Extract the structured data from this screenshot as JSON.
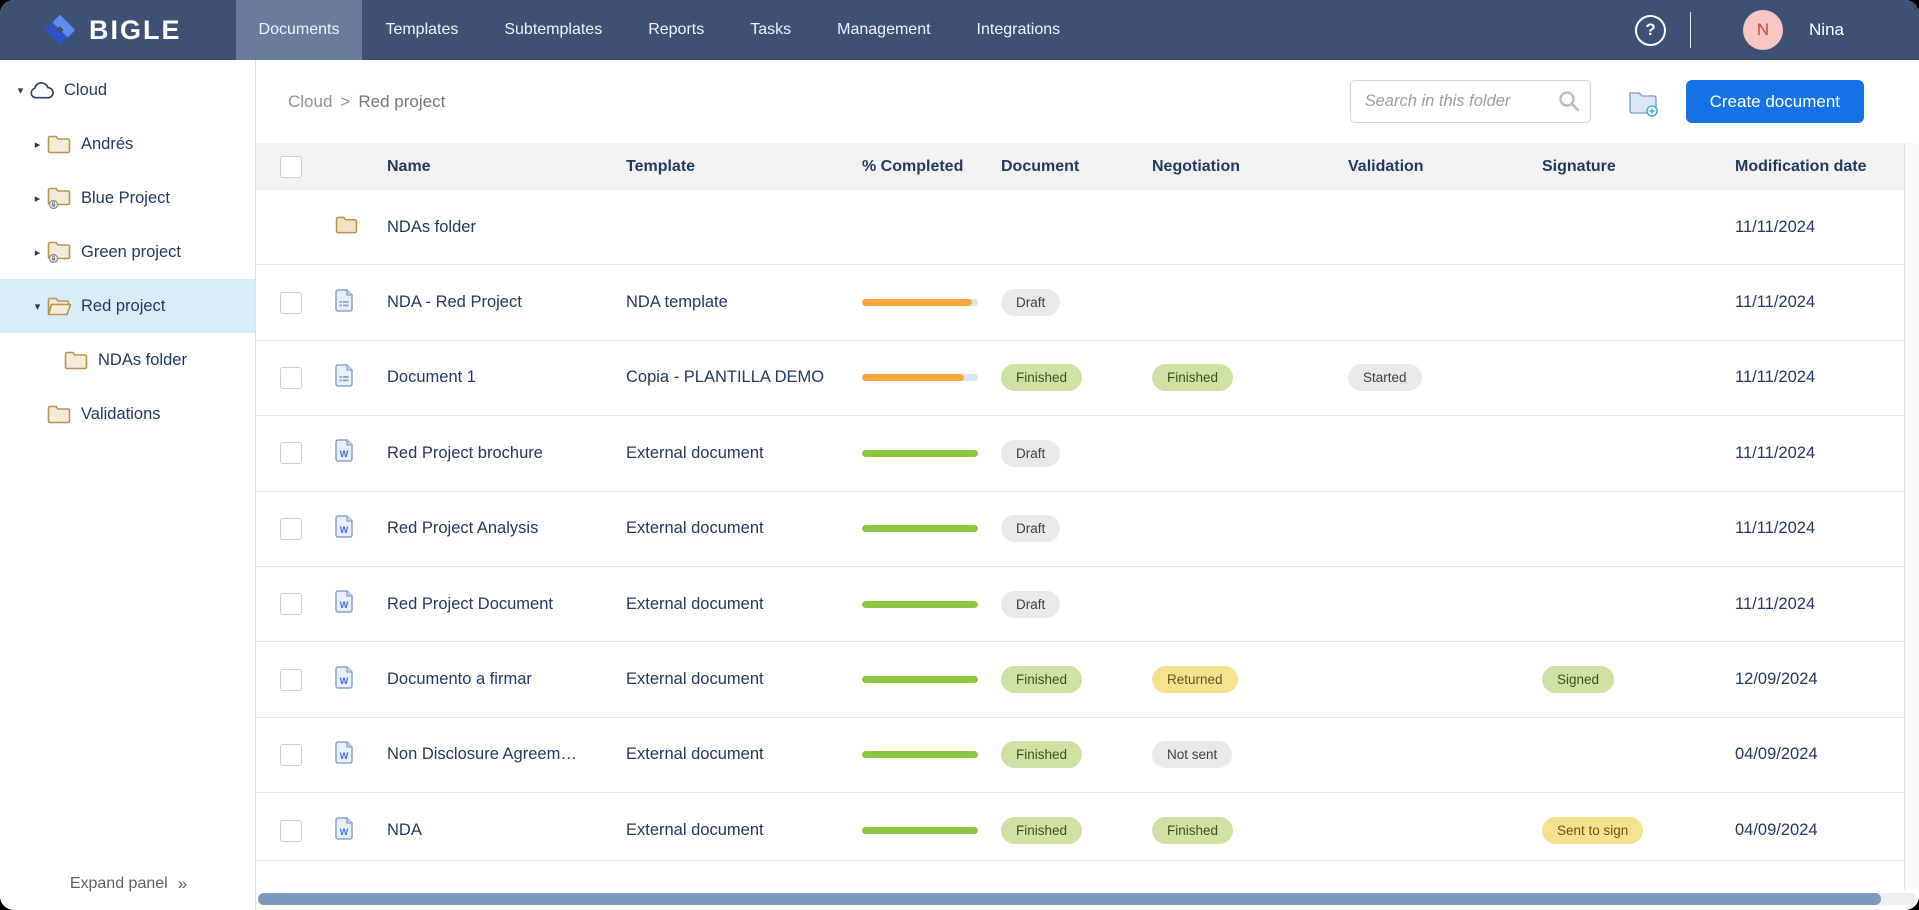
{
  "brand": {
    "name": "BIGLE",
    "logo_icon": "diamond-logo-icon"
  },
  "nav": {
    "tabs": [
      {
        "label": "Documents",
        "active": true
      },
      {
        "label": "Templates",
        "active": false
      },
      {
        "label": "Subtemplates",
        "active": false
      },
      {
        "label": "Reports",
        "active": false
      },
      {
        "label": "Tasks",
        "active": false
      },
      {
        "label": "Management",
        "active": false
      },
      {
        "label": "Integrations",
        "active": false
      }
    ],
    "help_icon": "?",
    "user": {
      "initial": "N",
      "name": "Nina"
    }
  },
  "sidebar": {
    "tree": [
      {
        "label": "Cloud",
        "icon": "cloud-icon",
        "caret": "down",
        "level": 0,
        "selected": false
      },
      {
        "label": "Andrés",
        "icon": "folder-icon",
        "caret": "right",
        "level": 1,
        "selected": false
      },
      {
        "label": "Blue Project",
        "icon": "folder-lock-icon",
        "caret": "right",
        "level": 1,
        "selected": false
      },
      {
        "label": "Green project",
        "icon": "folder-lock-icon",
        "caret": "right",
        "level": 1,
        "selected": false
      },
      {
        "label": "Red project",
        "icon": "folder-open-icon",
        "caret": "down",
        "level": 1,
        "selected": true
      },
      {
        "label": "NDAs folder",
        "icon": "folder-icon",
        "caret": "none",
        "level": 2,
        "selected": false
      },
      {
        "label": "Validations",
        "icon": "folder-icon",
        "caret": "none",
        "level": 1,
        "selected": false
      }
    ],
    "expand_label": "Expand panel",
    "expand_chevrons": "»"
  },
  "toolbar": {
    "breadcrumb": [
      "Cloud",
      "Red project"
    ],
    "breadcrumb_separator": ">",
    "search_placeholder": "Search in this folder",
    "create_button": "Create document"
  },
  "table": {
    "columns": [
      "Name",
      "Template",
      "% Completed",
      "Document",
      "Negotiation",
      "Validation",
      "Signature",
      "Modification date"
    ],
    "rows": [
      {
        "type": "folder",
        "checkbox": false,
        "name": "NDAs folder",
        "template": "",
        "progress": null,
        "document": null,
        "negotiation": null,
        "validation": null,
        "signature": null,
        "date": "11/11/2024"
      },
      {
        "type": "doc",
        "checkbox": true,
        "name": "NDA - Red Project",
        "template": "NDA template",
        "progress": {
          "value": 95,
          "color": "orange"
        },
        "document": {
          "label": "Draft",
          "variant": "gray"
        },
        "negotiation": null,
        "validation": null,
        "signature": null,
        "date": "11/11/2024"
      },
      {
        "type": "doc",
        "checkbox": true,
        "name": "Document 1",
        "template": "Copia - PLANTILLA DEMO",
        "progress": {
          "value": 88,
          "color": "orange"
        },
        "document": {
          "label": "Finished",
          "variant": "green"
        },
        "negotiation": {
          "label": "Finished",
          "variant": "green"
        },
        "validation": {
          "label": "Started",
          "variant": "gray"
        },
        "signature": null,
        "date": "11/11/2024"
      },
      {
        "type": "word",
        "checkbox": true,
        "name": "Red Project brochure",
        "template": "External document",
        "progress": {
          "value": 100,
          "color": "green"
        },
        "document": {
          "label": "Draft",
          "variant": "gray"
        },
        "negotiation": null,
        "validation": null,
        "signature": null,
        "date": "11/11/2024"
      },
      {
        "type": "word",
        "checkbox": true,
        "name": "Red Project Analysis",
        "template": "External document",
        "progress": {
          "value": 100,
          "color": "green"
        },
        "document": {
          "label": "Draft",
          "variant": "gray"
        },
        "negotiation": null,
        "validation": null,
        "signature": null,
        "date": "11/11/2024"
      },
      {
        "type": "word",
        "checkbox": true,
        "name": "Red Project Document",
        "template": "External document",
        "progress": {
          "value": 100,
          "color": "green"
        },
        "document": {
          "label": "Draft",
          "variant": "gray"
        },
        "negotiation": null,
        "validation": null,
        "signature": null,
        "date": "11/11/2024"
      },
      {
        "type": "word",
        "checkbox": true,
        "name": "Documento a firmar",
        "template": "External document",
        "progress": {
          "value": 100,
          "color": "green"
        },
        "document": {
          "label": "Finished",
          "variant": "green"
        },
        "negotiation": {
          "label": "Returned",
          "variant": "yellow"
        },
        "validation": null,
        "signature": {
          "label": "Signed",
          "variant": "green"
        },
        "date": "12/09/2024"
      },
      {
        "type": "word",
        "checkbox": true,
        "name": "Non Disclosure Agreem…",
        "template": "External document",
        "progress": {
          "value": 100,
          "color": "green"
        },
        "document": {
          "label": "Finished",
          "variant": "green"
        },
        "negotiation": {
          "label": "Not sent",
          "variant": "gray"
        },
        "validation": null,
        "signature": null,
        "date": "04/09/2024"
      },
      {
        "type": "word",
        "checkbox": true,
        "name": "NDA",
        "template": "External document",
        "progress": {
          "value": 100,
          "color": "green"
        },
        "document": {
          "label": "Finished",
          "variant": "green"
        },
        "negotiation": {
          "label": "Finished",
          "variant": "green"
        },
        "validation": null,
        "signature": {
          "label": "Sent to sign",
          "variant": "yellow"
        },
        "date": "04/09/2024"
      }
    ]
  },
  "colors": {
    "navbar": "#3c5173",
    "active_tab": "#697c9e",
    "accent_blue": "#1673e6",
    "selected_row": "#d9ecfa",
    "bar_orange": "#f7a73a",
    "bar_green": "#8cc63e",
    "badge_green": "#cfe1a4",
    "badge_yellow": "#f6e28e",
    "badge_gray": "#e9e9e9"
  }
}
